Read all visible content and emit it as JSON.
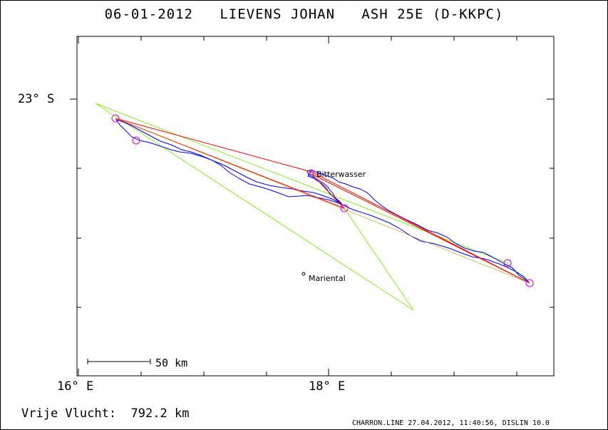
{
  "header": {
    "date": "06-01-2012",
    "pilot": "LIEVENS JOHAN",
    "glider": "ASH 25E (D-KKPC)"
  },
  "axes": {
    "lat_label": "23° S",
    "lon_labels": [
      "16° E",
      "18° E"
    ]
  },
  "places": {
    "bitterwasser": "Bitterwasser",
    "mariental": "Mariental"
  },
  "scale": {
    "label": "50 km"
  },
  "summary": {
    "distance_label": "Vrije Vlucht:",
    "distance_value": "792.2 km"
  },
  "footer": {
    "text": "CHARRON.LINE 27.04.2012, 11:40:56, DISLIN 10.0"
  },
  "colors": {
    "track": "#0000ff",
    "task": "#ff0000",
    "alt_task": "#88ee22",
    "turnpoint": "#dd00dd"
  }
}
